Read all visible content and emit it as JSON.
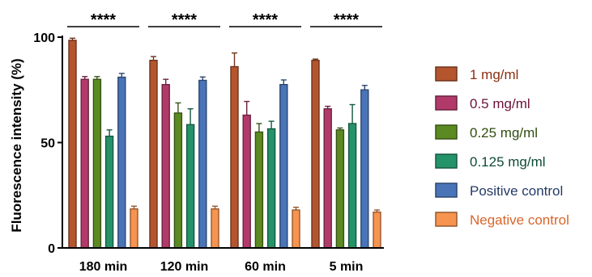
{
  "chart_data": {
    "type": "bar",
    "ylabel": "Fluorescence intensity (%)",
    "xlabel": "",
    "ylim": [
      0,
      100
    ],
    "yticks": [
      0,
      50,
      100
    ],
    "categories": [
      "180 min",
      "120 min",
      "60 min",
      "5 min"
    ],
    "series": [
      {
        "name": "1 mg/ml",
        "color": "#b5552e",
        "text_color": "#8b2e12",
        "values": [
          98.5,
          89.0,
          86.0,
          89.0
        ],
        "errors": [
          1.0,
          1.8,
          6.5,
          0.6
        ]
      },
      {
        "name": "0.5 mg/ml",
        "color": "#b23a6a",
        "text_color": "#6b1239",
        "values": [
          80.0,
          77.5,
          63.0,
          66.0
        ],
        "errors": [
          1.3,
          2.5,
          6.5,
          1.2
        ]
      },
      {
        "name": "0.25 mg/ml",
        "color": "#5c8a22",
        "text_color": "#2f4d10",
        "values": [
          80.0,
          64.0,
          55.0,
          56.0
        ],
        "errors": [
          1.3,
          4.8,
          4.0,
          0.9
        ]
      },
      {
        "name": "0.125 mg/ml",
        "color": "#25936a",
        "text_color": "#0e4a35",
        "values": [
          53.0,
          58.5,
          56.5,
          59.0
        ],
        "errors": [
          3.0,
          7.5,
          3.6,
          9.0
        ]
      },
      {
        "name": "Positive control",
        "color": "#4a74b8",
        "text_color": "#243a66",
        "values": [
          81.0,
          79.5,
          77.5,
          75.0
        ],
        "errors": [
          1.8,
          1.6,
          2.2,
          2.1
        ]
      },
      {
        "name": "Negative control",
        "color": "#f7944f",
        "text_color": "#d9652a",
        "values": [
          18.5,
          18.5,
          18.0,
          17.0
        ],
        "errors": [
          1.3,
          1.3,
          1.3,
          1.0
        ]
      }
    ],
    "significance": [
      {
        "category": "180 min",
        "label": "****"
      },
      {
        "category": "120 min",
        "label": "****"
      },
      {
        "category": "60 min",
        "label": "****"
      },
      {
        "category": "5 min",
        "label": "****"
      }
    ],
    "legend_position": "right",
    "grid": false
  }
}
